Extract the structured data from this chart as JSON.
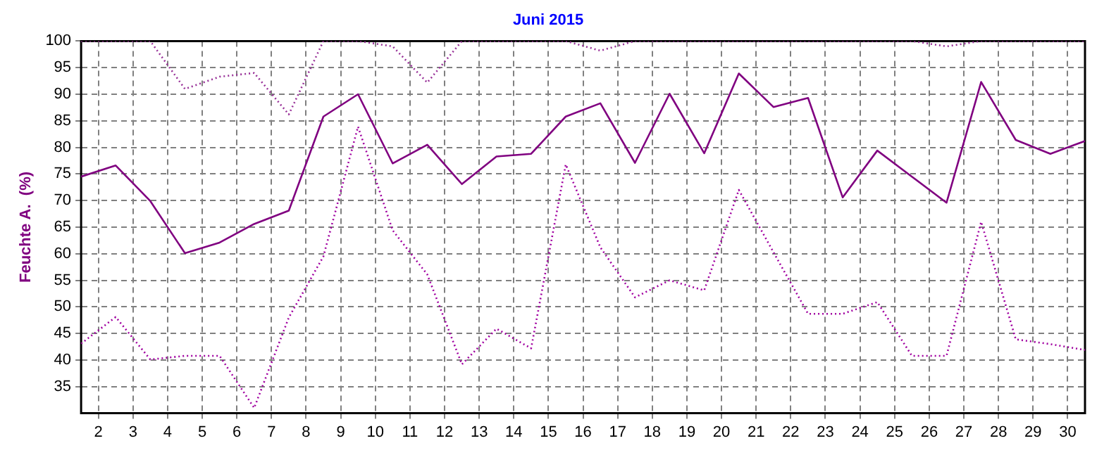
{
  "chart_data": {
    "type": "line",
    "title": "Juni 2015",
    "ylabel": "Feuchte A.  (%)",
    "x": [
      1.5,
      2.5,
      3.5,
      4.5,
      5.5,
      6.5,
      7.5,
      8.5,
      9.5,
      10.5,
      11.5,
      12.5,
      13.5,
      14.5,
      15.5,
      16.5,
      17.5,
      18.5,
      19.5,
      20.5,
      21.5,
      22.5,
      23.5,
      24.5,
      25.5,
      26.5,
      27.5,
      28.5,
      29.5,
      30.5
    ],
    "series": [
      {
        "color": "#993399",
        "line_style": "dotted",
        "values": [
          100,
          100,
          100,
          91,
          93.3,
          94,
          86.2,
          100,
          100,
          99,
          92.2,
          100,
          100,
          100,
          100,
          98.2,
          100,
          100,
          100,
          100,
          100,
          100,
          100,
          100,
          100,
          99,
          100,
          100,
          100,
          100
        ]
      },
      {
        "color": "#800080",
        "line_style": "solid",
        "values": [
          74.5,
          76.6,
          69.9,
          60.1,
          62.1,
          65.6,
          68.1,
          85.8,
          90,
          77,
          80.5,
          73.1,
          78.3,
          78.8,
          85.8,
          88.3,
          77.1,
          90.1,
          78.9,
          93.9,
          87.6,
          89.3,
          70.6,
          79.4,
          74.5,
          69.6,
          92.3,
          81.4,
          78.8,
          81.2
        ]
      },
      {
        "color": "#a000a0",
        "line_style": "dotted",
        "values": [
          43.1,
          48.1,
          40.1,
          40.8,
          40.8,
          31,
          48,
          59.5,
          83.9,
          64.4,
          56.1,
          39.2,
          45.9,
          42.2,
          76.8,
          61.2,
          51.8,
          55,
          53.1,
          72,
          60.3,
          48.7,
          48.7,
          50.9,
          40.8,
          40.8,
          66,
          43.9,
          43,
          41.9
        ]
      }
    ],
    "xlim": [
      1.5,
      30.5
    ],
    "xticks": [
      2,
      3,
      4,
      5,
      6,
      7,
      8,
      9,
      10,
      11,
      12,
      13,
      14,
      15,
      16,
      17,
      18,
      19,
      20,
      21,
      22,
      23,
      24,
      25,
      26,
      27,
      28,
      29,
      30
    ],
    "ylim": [
      30,
      100
    ],
    "yticks": [
      35,
      40,
      45,
      50,
      55,
      60,
      65,
      70,
      75,
      80,
      85,
      90,
      95,
      100
    ],
    "grid": true,
    "marker": "none"
  }
}
